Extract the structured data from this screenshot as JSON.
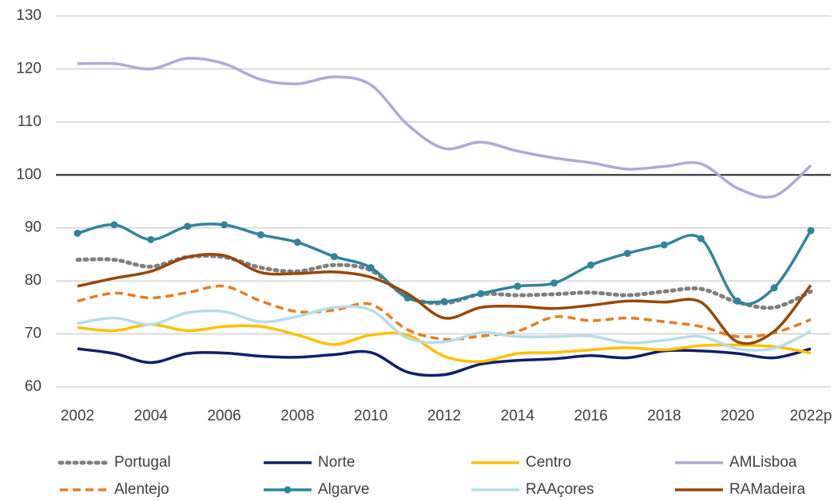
{
  "chart_data": {
    "type": "line",
    "categories": [
      "2002",
      null,
      "2004",
      null,
      "2006",
      null,
      "2008",
      null,
      "2010",
      null,
      "2012",
      null,
      "2014",
      null,
      "2016",
      null,
      "2018",
      null,
      "2020",
      null,
      "2022p"
    ],
    "ylim": [
      60,
      130
    ],
    "yticks": [
      60,
      70,
      80,
      90,
      100,
      110,
      120,
      130
    ],
    "grid": true,
    "reference_line": 100,
    "legend": "bottom",
    "series": [
      {
        "name": "Portugal",
        "color": "#7f7f7f",
        "dash": "dot",
        "values": [
          84,
          84,
          82.7,
          84.5,
          84.5,
          82.5,
          81.8,
          83,
          82,
          77,
          75.8,
          77.5,
          77.3,
          77.5,
          77.8,
          77.3,
          78,
          78.5,
          76,
          75,
          78
        ]
      },
      {
        "name": "Norte",
        "color": "#0f1f6b",
        "values": [
          67.2,
          66.3,
          64.6,
          66.3,
          66.4,
          65.8,
          65.6,
          66.1,
          66.5,
          62.8,
          62.3,
          64.3,
          65,
          65.3,
          65.9,
          65.5,
          66.8,
          66.8,
          66.3,
          65.5,
          67.2
        ]
      },
      {
        "name": "Centro",
        "color": "#ffc000",
        "values": [
          71.2,
          70.6,
          71.8,
          70.6,
          71.4,
          71.4,
          69.8,
          68,
          69.8,
          69.8,
          65.8,
          64.8,
          66.3,
          66.5,
          67,
          67.4,
          67,
          67.8,
          67.9,
          67.6,
          66.4
        ]
      },
      {
        "name": "AMLisboa",
        "color": "#b4a7d6",
        "values": [
          121,
          121,
          120,
          122,
          121,
          118,
          117.2,
          118.5,
          117,
          109.5,
          105,
          106.2,
          104.5,
          103.2,
          102.3,
          101.1,
          101.6,
          102.1,
          97.5,
          96,
          101.8
        ]
      },
      {
        "name": "Alentejo",
        "color": "#e67e22",
        "dash": "dash",
        "values": [
          76.2,
          77.7,
          76.8,
          77.8,
          79,
          76.2,
          74.2,
          74.5,
          75.6,
          70.8,
          69,
          69.6,
          70.5,
          73.2,
          72.5,
          73,
          72.3,
          71.4,
          69.5,
          70.2,
          72.7
        ]
      },
      {
        "name": "Algarve",
        "color": "#31849b",
        "marker": "circle",
        "values": [
          89,
          90.6,
          87.8,
          90.3,
          90.6,
          88.7,
          87.3,
          84.6,
          82.5,
          76.8,
          76.1,
          77.6,
          79,
          79.6,
          83,
          85.2,
          86.8,
          88,
          76.2,
          78.7,
          89.5
        ]
      },
      {
        "name": "RAAçores",
        "color": "#b7dde8",
        "values": [
          72,
          73,
          71.8,
          74,
          74.2,
          72.3,
          73.3,
          75,
          74.5,
          69.2,
          68.5,
          70.2,
          69.5,
          69.5,
          69.6,
          68.3,
          68.8,
          69.5,
          67.2,
          67.3,
          70.5
        ]
      },
      {
        "name": "RAMadeira",
        "color": "#974706",
        "values": [
          79,
          80.5,
          81.8,
          84.5,
          84.8,
          81.6,
          81.4,
          81.7,
          80.7,
          77.6,
          73,
          75,
          75.2,
          74.8,
          75.4,
          76.2,
          76,
          76,
          68.5,
          70.5,
          79.2
        ]
      }
    ]
  }
}
